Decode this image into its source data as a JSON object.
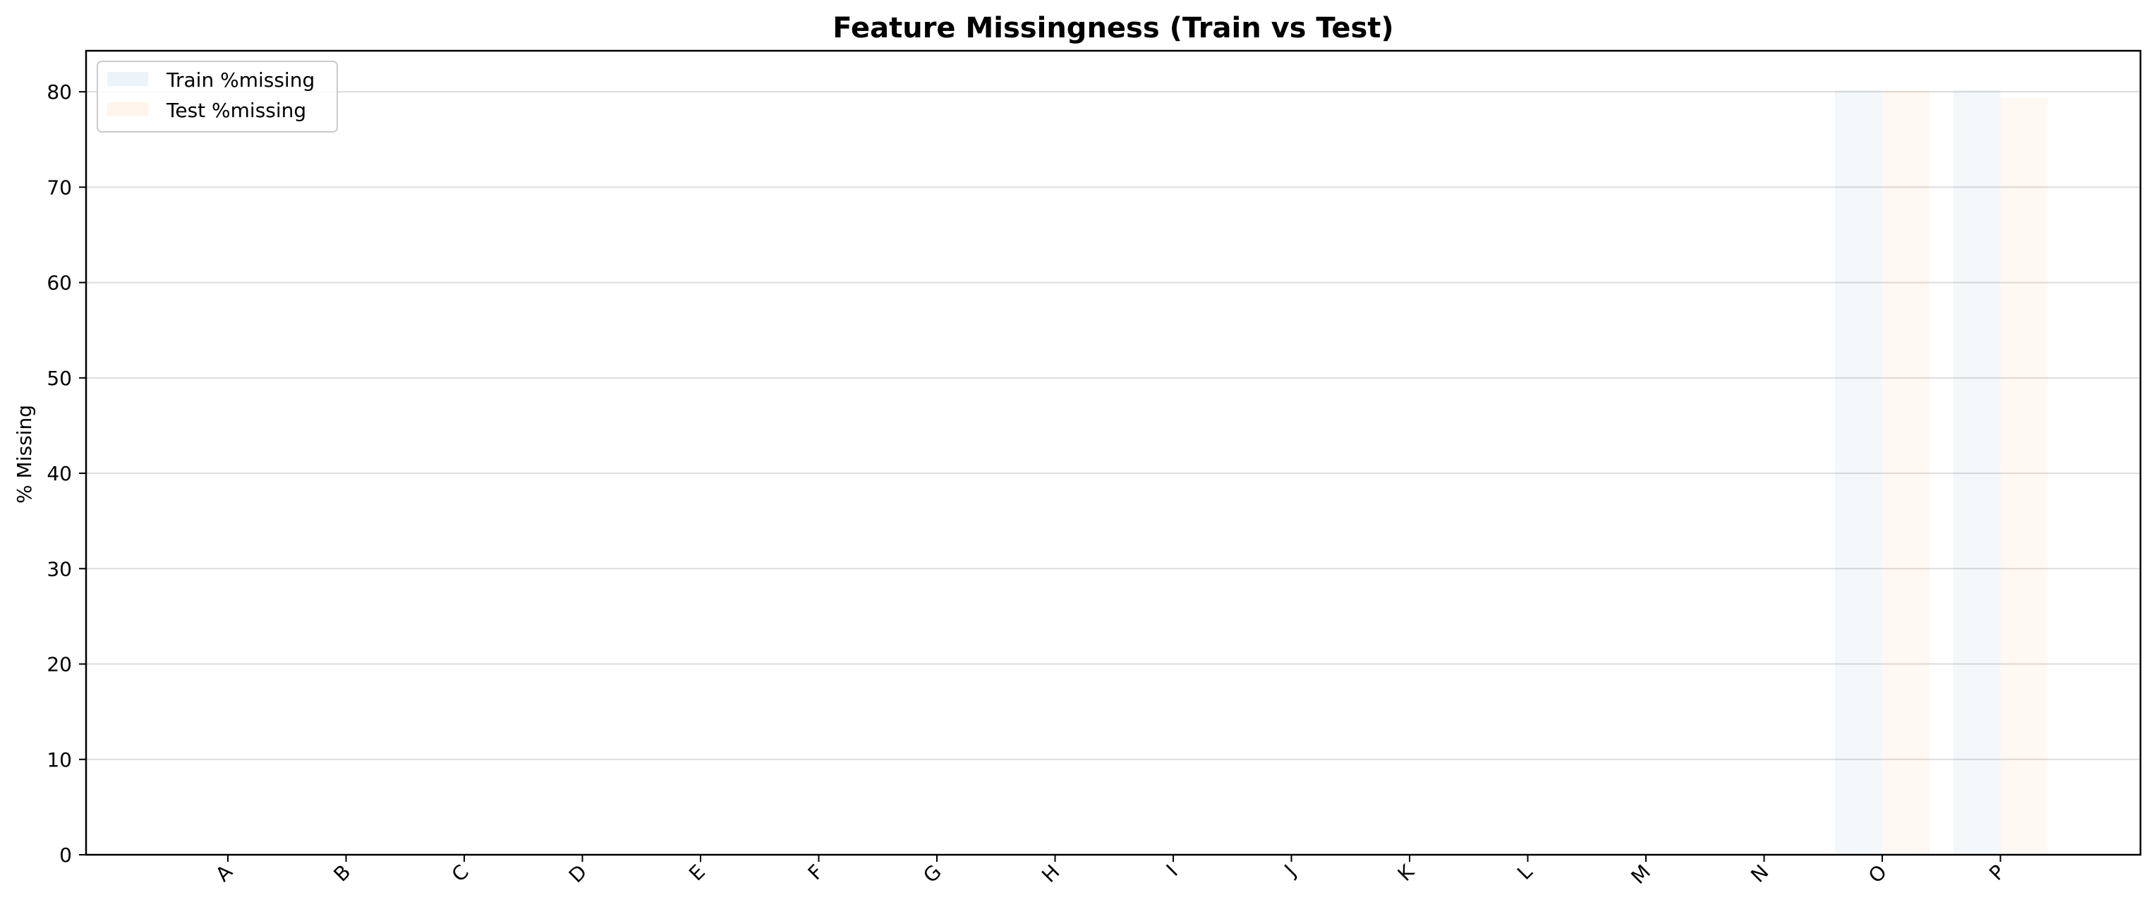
{
  "chart_data": {
    "type": "bar",
    "title": "Feature Missingness (Train vs Test)",
    "xlabel": "",
    "ylabel": "% Missing",
    "categories": [
      "A",
      "B",
      "C",
      "D",
      "E",
      "F",
      "G",
      "H",
      "I",
      "J",
      "K",
      "L",
      "M",
      "N",
      "O",
      "P"
    ],
    "series": [
      {
        "name": "Train %missing",
        "color": "#1f77b4",
        "values": [
          0,
          0,
          0,
          0,
          0,
          0,
          0,
          0,
          0,
          0,
          0,
          0,
          0,
          0,
          80.2,
          80.2
        ]
      },
      {
        "name": "Test %missing",
        "color": "#ff7f0e",
        "values": [
          0,
          0,
          0,
          0,
          0,
          0,
          0,
          0,
          0,
          0,
          0,
          0,
          0,
          0,
          80.2,
          79.4
        ]
      }
    ],
    "yticks": [
      0,
      10,
      20,
      30,
      40,
      50,
      60,
      70,
      80
    ],
    "ylim": [
      0,
      84.3
    ],
    "grid": "y",
    "legend": "upper-left",
    "bar_opacity": 0.05
  }
}
